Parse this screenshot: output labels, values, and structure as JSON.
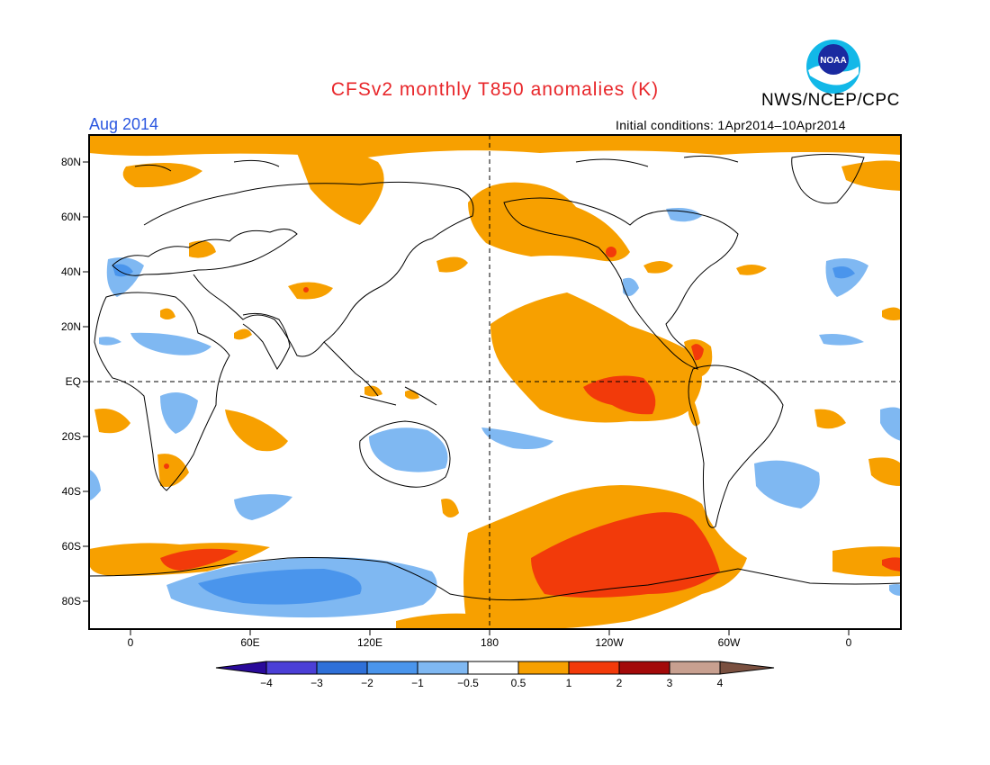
{
  "header": {
    "title": "CFSv2 monthly T850 anomalies (K)",
    "agency": "NWS/NCEP/CPC",
    "logo_text": "NOAA",
    "month": "Aug 2014",
    "initial_conditions": "Initial conditions: 1Apr2014–10Apr2014"
  },
  "lat_labels": [
    "80N",
    "60N",
    "40N",
    "20N",
    "EQ",
    "20S",
    "40S",
    "60S",
    "80S"
  ],
  "lon_labels": [
    "0",
    "60E",
    "120E",
    "180",
    "120W",
    "60W",
    "0"
  ],
  "colorbar": {
    "labels": [
      "−4",
      "−3",
      "−2",
      "−1",
      "−0.5",
      "0.5",
      "1",
      "2",
      "3",
      "4"
    ],
    "colors": [
      "#2a0a9a",
      "#4b3fd6",
      "#2f70d8",
      "#4a95ec",
      "#7fb8f2",
      "#ffffff",
      "#f7a000",
      "#f23a0a",
      "#a30a0a",
      "#c8a090",
      "#7a5040"
    ]
  },
  "colors": {
    "warm1": "#f7a000",
    "warm2": "#f23a0a",
    "cool1": "#7fb8f2",
    "cool2": "#4a95ec"
  }
}
